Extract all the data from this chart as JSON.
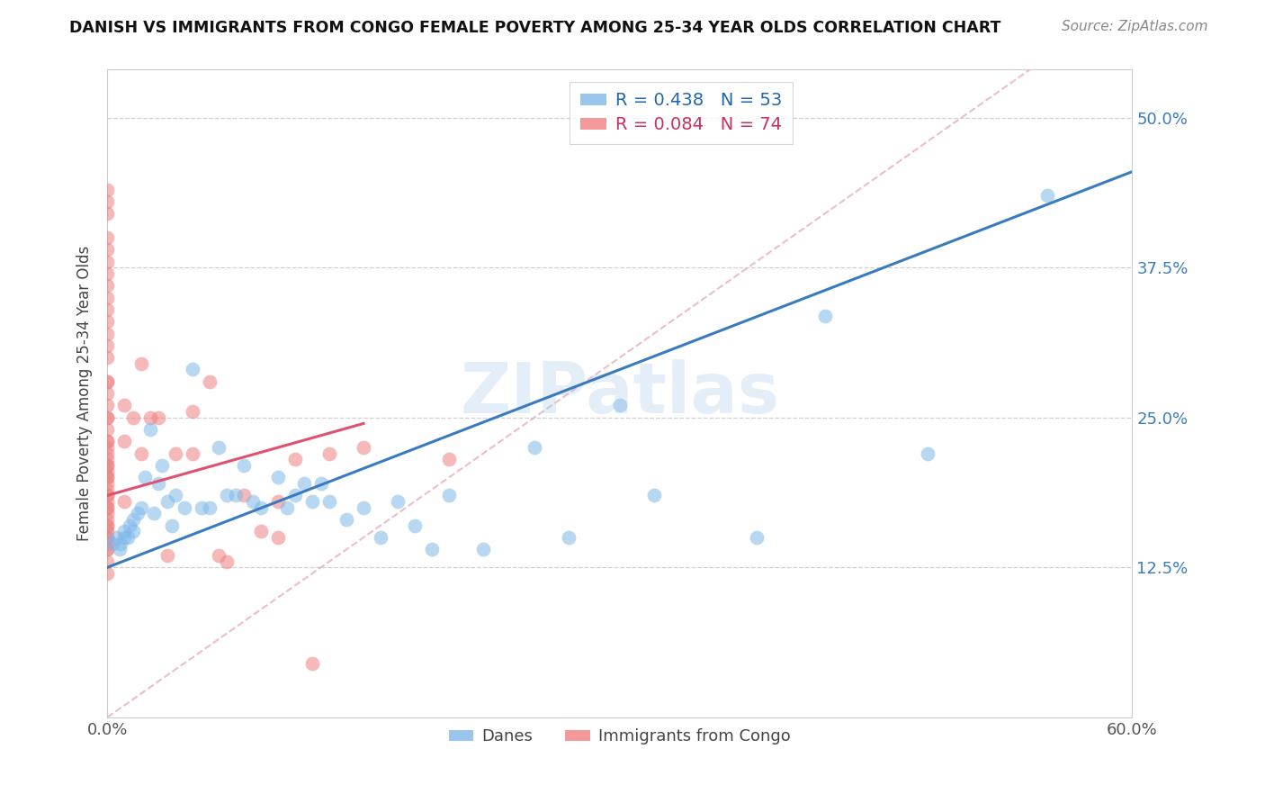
{
  "title": "DANISH VS IMMIGRANTS FROM CONGO FEMALE POVERTY AMONG 25-34 YEAR OLDS CORRELATION CHART",
  "source": "Source: ZipAtlas.com",
  "ylabel": "Female Poverty Among 25-34 Year Olds",
  "xlim": [
    0.0,
    0.6
  ],
  "ylim": [
    0.0,
    0.54
  ],
  "xtick_positions": [
    0.0,
    0.1,
    0.2,
    0.3,
    0.4,
    0.5,
    0.6
  ],
  "xticklabels": [
    "0.0%",
    "",
    "",
    "",
    "",
    "",
    "60.0%"
  ],
  "ytick_positions": [
    0.125,
    0.25,
    0.375,
    0.5
  ],
  "ytick_labels": [
    "12.5%",
    "25.0%",
    "37.5%",
    "50.0%"
  ],
  "danes_color": "#7eb8e8",
  "congo_color": "#f08080",
  "danes_line_color": "#3a7bbf",
  "congo_line_color": "#e05070",
  "danes_R": 0.438,
  "danes_N": 53,
  "congo_R": 0.084,
  "congo_N": 74,
  "watermark": "ZIPatlas",
  "background_color": "#ffffff",
  "grid_color": "#d0d0d0",
  "danes_x": [
    0.003,
    0.005,
    0.007,
    0.008,
    0.01,
    0.01,
    0.012,
    0.013,
    0.015,
    0.015,
    0.018,
    0.02,
    0.022,
    0.025,
    0.027,
    0.03,
    0.032,
    0.035,
    0.038,
    0.04,
    0.045,
    0.05,
    0.055,
    0.06,
    0.065,
    0.07,
    0.075,
    0.08,
    0.085,
    0.09,
    0.1,
    0.105,
    0.11,
    0.115,
    0.12,
    0.125,
    0.13,
    0.14,
    0.15,
    0.16,
    0.17,
    0.18,
    0.19,
    0.2,
    0.22,
    0.25,
    0.27,
    0.3,
    0.32,
    0.38,
    0.42,
    0.48,
    0.55
  ],
  "danes_y": [
    0.145,
    0.15,
    0.14,
    0.145,
    0.15,
    0.155,
    0.15,
    0.16,
    0.155,
    0.165,
    0.17,
    0.175,
    0.2,
    0.24,
    0.17,
    0.195,
    0.21,
    0.18,
    0.16,
    0.185,
    0.175,
    0.29,
    0.175,
    0.175,
    0.225,
    0.185,
    0.185,
    0.21,
    0.18,
    0.175,
    0.2,
    0.175,
    0.185,
    0.195,
    0.18,
    0.195,
    0.18,
    0.165,
    0.175,
    0.15,
    0.18,
    0.16,
    0.14,
    0.185,
    0.14,
    0.225,
    0.15,
    0.26,
    0.185,
    0.15,
    0.335,
    0.22,
    0.435
  ],
  "congo_x": [
    0.0,
    0.0,
    0.0,
    0.0,
    0.0,
    0.0,
    0.0,
    0.0,
    0.0,
    0.0,
    0.0,
    0.0,
    0.0,
    0.0,
    0.0,
    0.0,
    0.0,
    0.0,
    0.0,
    0.0,
    0.0,
    0.0,
    0.0,
    0.0,
    0.0,
    0.0,
    0.0,
    0.0,
    0.0,
    0.0,
    0.0,
    0.0,
    0.0,
    0.0,
    0.0,
    0.0,
    0.0,
    0.0,
    0.0,
    0.0,
    0.0,
    0.0,
    0.0,
    0.0,
    0.0,
    0.0,
    0.0,
    0.0,
    0.0,
    0.0,
    0.01,
    0.01,
    0.01,
    0.015,
    0.02,
    0.02,
    0.025,
    0.03,
    0.035,
    0.04,
    0.05,
    0.05,
    0.06,
    0.065,
    0.07,
    0.08,
    0.09,
    0.1,
    0.1,
    0.11,
    0.12,
    0.13,
    0.15,
    0.2
  ],
  "congo_y": [
    0.14,
    0.145,
    0.15,
    0.155,
    0.16,
    0.165,
    0.17,
    0.175,
    0.18,
    0.185,
    0.19,
    0.195,
    0.2,
    0.205,
    0.21,
    0.215,
    0.22,
    0.225,
    0.23,
    0.24,
    0.25,
    0.26,
    0.27,
    0.28,
    0.3,
    0.31,
    0.32,
    0.33,
    0.34,
    0.35,
    0.36,
    0.37,
    0.38,
    0.39,
    0.4,
    0.42,
    0.43,
    0.44,
    0.28,
    0.25,
    0.23,
    0.21,
    0.2,
    0.185,
    0.175,
    0.16,
    0.15,
    0.14,
    0.13,
    0.12,
    0.26,
    0.23,
    0.18,
    0.25,
    0.295,
    0.22,
    0.25,
    0.25,
    0.135,
    0.22,
    0.255,
    0.22,
    0.28,
    0.135,
    0.13,
    0.185,
    0.155,
    0.18,
    0.15,
    0.215,
    0.045,
    0.22,
    0.225,
    0.215
  ],
  "danes_line_x": [
    0.0,
    0.6
  ],
  "danes_line_y": [
    0.125,
    0.455
  ],
  "congo_line_x": [
    0.0,
    0.15
  ],
  "congo_line_y": [
    0.185,
    0.245
  ],
  "ref_line_x": [
    0.0,
    0.54
  ],
  "ref_line_y": [
    0.0,
    0.54
  ]
}
